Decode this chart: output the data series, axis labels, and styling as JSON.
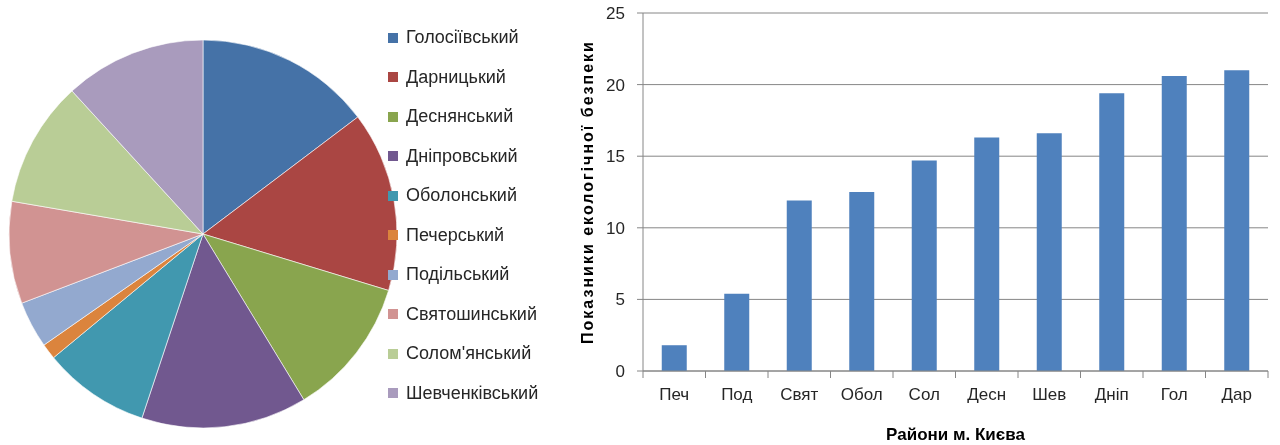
{
  "chart_data": [
    {
      "type": "pie",
      "categories": [
        "Голосіївський",
        "Дарницький",
        "Деснянський",
        "Дніпровський",
        "Оболонський",
        "Печерський",
        "Подільський",
        "Святошинський",
        "Солом'янський",
        "Шевченківський"
      ],
      "values": [
        14.7,
        15.0,
        11.6,
        13.8,
        8.9,
        1.3,
        3.9,
        8.5,
        10.5,
        11.8
      ],
      "colors": [
        "#4572a7",
        "#aa4643",
        "#89a54e",
        "#71588f",
        "#4198af",
        "#db843d",
        "#93a9cf",
        "#d19392",
        "#b9cd96",
        "#a99bbd"
      ],
      "legend": "right"
    },
    {
      "type": "bar",
      "categories": [
        "Печ",
        "Под",
        "Свят",
        "Обол",
        "Сол",
        "Десн",
        "Шев",
        "Дніп",
        "Гол",
        "Дар"
      ],
      "values": [
        1.8,
        5.4,
        11.9,
        12.5,
        14.7,
        16.3,
        16.6,
        19.4,
        20.6,
        21.0
      ],
      "color": "#4f81bd",
      "xlabel": "Райони м. Києва",
      "ylabel": "Показники екологічної безпеки",
      "ylim": [
        0,
        25
      ],
      "yticks": [
        0,
        5,
        10,
        15,
        20,
        25
      ],
      "grid": "y"
    }
  ]
}
